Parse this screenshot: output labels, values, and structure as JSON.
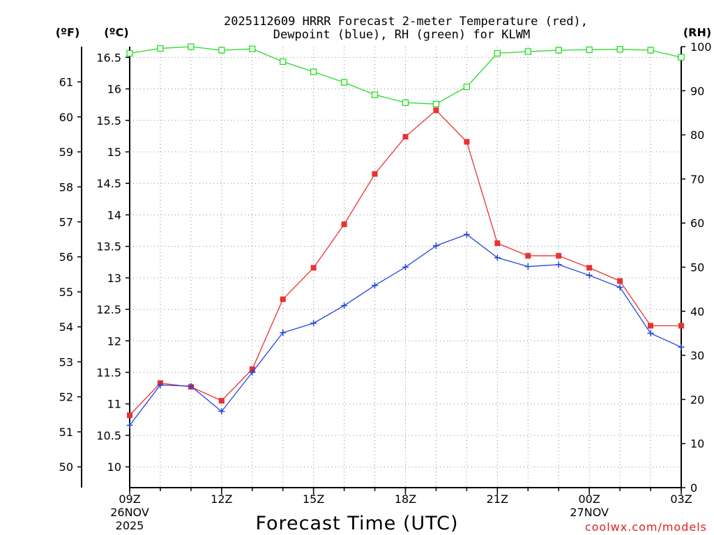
{
  "chart_data": {
    "type": "line",
    "title_line1": "2025112609 HRRR Forecast 2-meter Temperature (red),",
    "title_line2": "Dewpoint (blue), RH (green) for KLWM",
    "units": {
      "fahrenheit": "(ºF)",
      "celsius": "(ºC)",
      "rh": "(RH)"
    },
    "xlabel": "Forecast Time (UTC)",
    "credit": "coolwx.com/models",
    "x_hours": [
      0,
      1,
      2,
      3,
      4,
      5,
      6,
      7,
      8,
      9,
      10,
      11,
      12,
      13,
      14,
      15,
      16,
      17,
      18
    ],
    "x_ticks": [
      {
        "hour": 0,
        "label": "09Z",
        "sub1": "26NOV",
        "sub2": "2025"
      },
      {
        "hour": 3,
        "label": "12Z",
        "sub1": "",
        "sub2": ""
      },
      {
        "hour": 6,
        "label": "15Z",
        "sub1": "",
        "sub2": ""
      },
      {
        "hour": 9,
        "label": "18Z",
        "sub1": "",
        "sub2": ""
      },
      {
        "hour": 12,
        "label": "21Z",
        "sub1": "",
        "sub2": ""
      },
      {
        "hour": 15,
        "label": "00Z",
        "sub1": "27NOV",
        "sub2": ""
      },
      {
        "hour": 18,
        "label": "03Z",
        "sub1": "",
        "sub2": ""
      }
    ],
    "celsius_range": [
      9.67,
      16.67
    ],
    "celsius_ticks": [
      "10",
      "10.5",
      "11",
      "11.5",
      "12",
      "12.5",
      "13",
      "13.5",
      "14",
      "14.5",
      "15",
      "15.5",
      "16",
      "16.5"
    ],
    "fahrenheit_ticks": [
      "50",
      "51",
      "52",
      "53",
      "54",
      "55",
      "56",
      "57",
      "58",
      "59",
      "60",
      "61"
    ],
    "rh_range": [
      0,
      100
    ],
    "rh_ticks": [
      "0",
      "10",
      "20",
      "30",
      "40",
      "50",
      "60",
      "70",
      "80",
      "90",
      "100"
    ],
    "series": [
      {
        "name": "Temperature",
        "color": "#e83232",
        "marker": "filled-square",
        "axis": "celsius",
        "values": [
          10.82,
          11.33,
          11.27,
          11.05,
          11.55,
          12.66,
          13.16,
          13.85,
          14.65,
          15.24,
          15.66,
          15.16,
          13.55,
          13.35,
          13.35,
          13.16,
          12.95,
          12.24,
          12.24
        ]
      },
      {
        "name": "Dewpoint",
        "color": "#2244dd",
        "marker": "plus",
        "axis": "celsius",
        "values": [
          10.66,
          11.3,
          11.28,
          10.88,
          11.5,
          12.13,
          12.28,
          12.56,
          12.88,
          13.17,
          13.51,
          13.69,
          13.32,
          13.18,
          13.21,
          13.04,
          12.85,
          12.12,
          11.9
        ]
      },
      {
        "name": "RH",
        "color": "#22dd22",
        "marker": "open-square",
        "axis": "rh",
        "values": [
          98.5,
          99.6,
          100,
          99.2,
          99.5,
          96.6,
          94.3,
          91.9,
          89.1,
          87.3,
          87.0,
          90.9,
          98.5,
          98.9,
          99.2,
          99.3,
          99.4,
          99.2,
          97.6
        ]
      }
    ]
  }
}
